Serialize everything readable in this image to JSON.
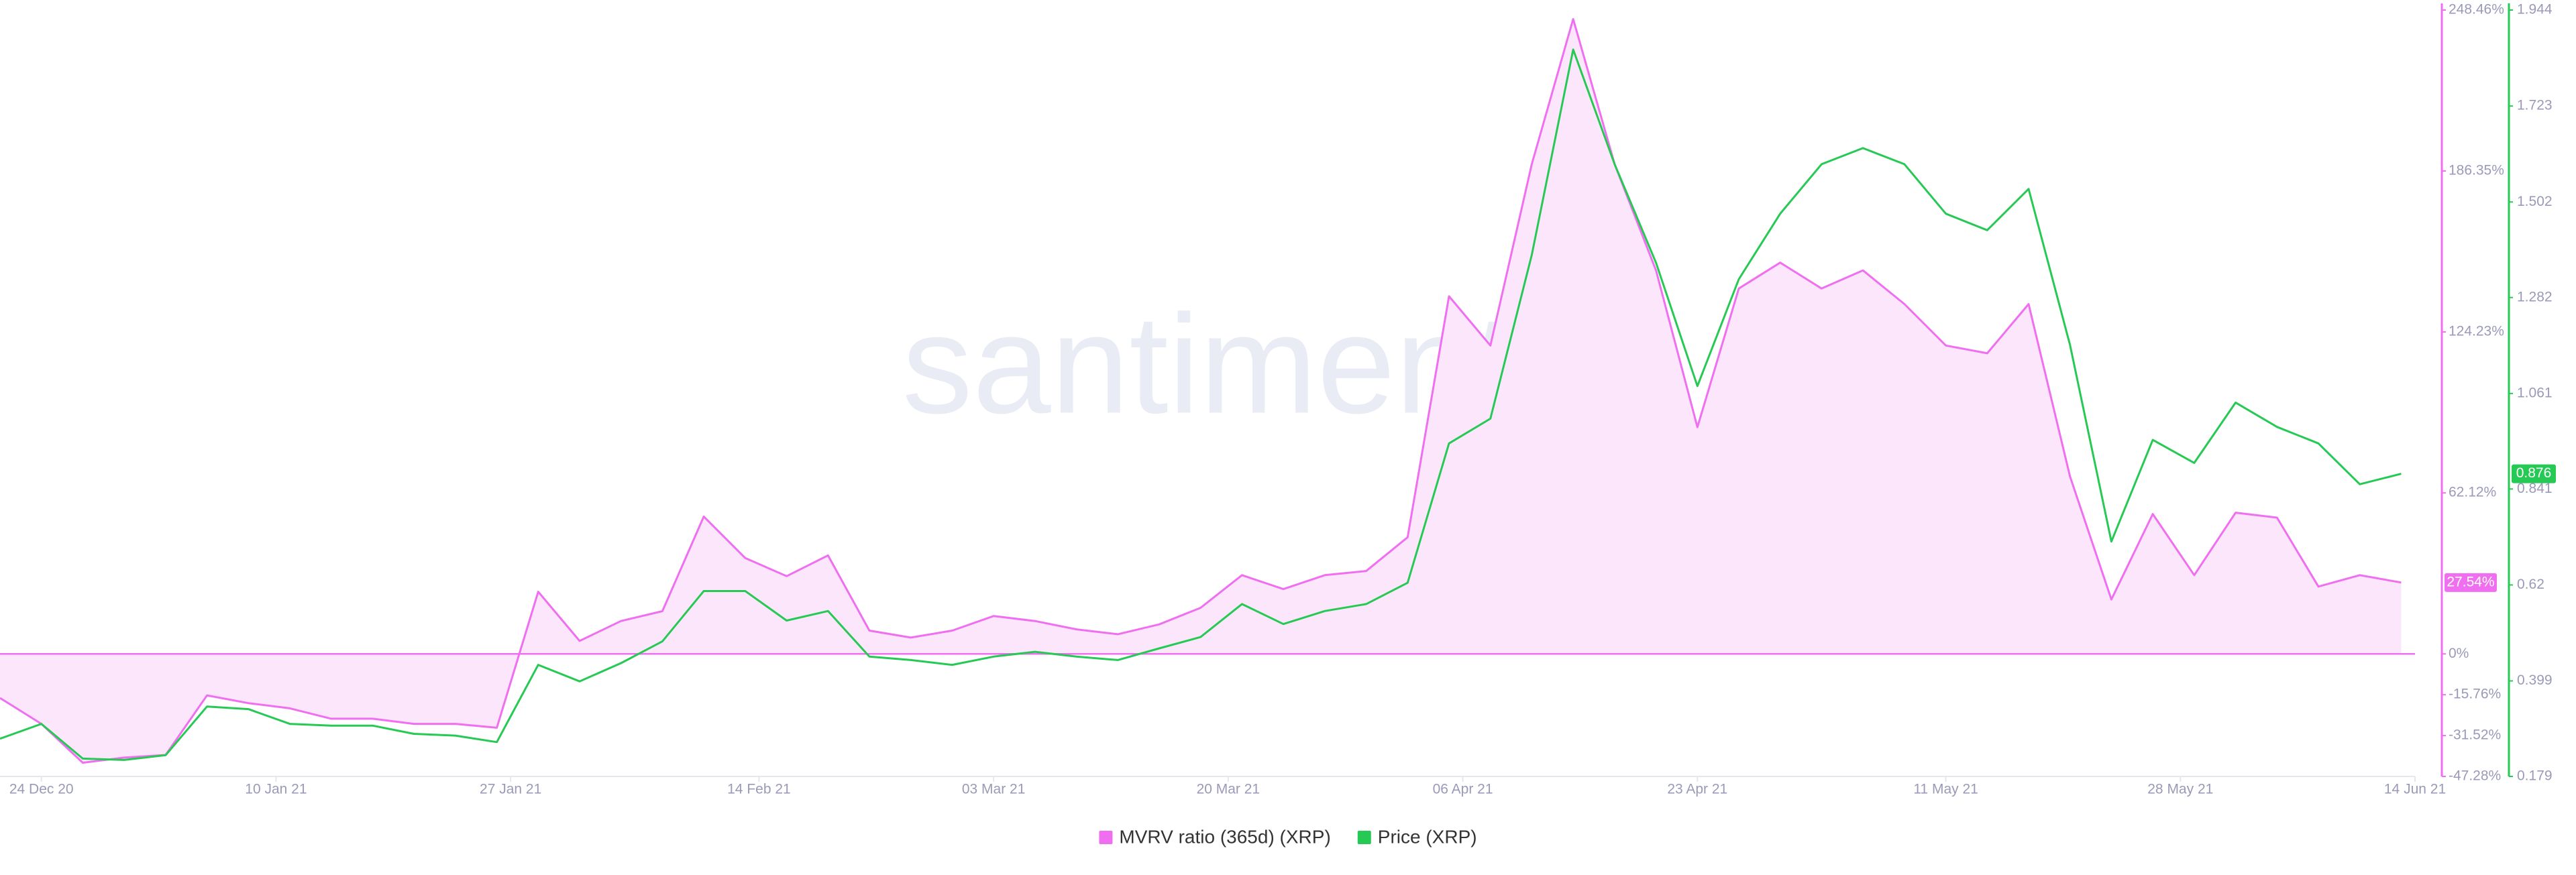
{
  "chart_data": {
    "type": "line",
    "watermark": "santiment",
    "x": [
      "2020-12-21",
      "2020-12-24",
      "2020-12-27",
      "2020-12-30",
      "2021-01-02",
      "2021-01-05",
      "2021-01-08",
      "2021-01-11",
      "2021-01-14",
      "2021-01-17",
      "2021-01-20",
      "2021-01-23",
      "2021-01-26",
      "2021-01-29",
      "2021-02-01",
      "2021-02-04",
      "2021-02-07",
      "2021-02-10",
      "2021-02-13",
      "2021-02-16",
      "2021-02-19",
      "2021-02-22",
      "2021-02-25",
      "2021-02-28",
      "2021-03-03",
      "2021-03-06",
      "2021-03-09",
      "2021-03-12",
      "2021-03-15",
      "2021-03-18",
      "2021-03-21",
      "2021-03-24",
      "2021-03-27",
      "2021-03-30",
      "2021-04-02",
      "2021-04-05",
      "2021-04-08",
      "2021-04-11",
      "2021-04-14",
      "2021-04-17",
      "2021-04-20",
      "2021-04-23",
      "2021-04-26",
      "2021-04-29",
      "2021-05-02",
      "2021-05-05",
      "2021-05-08",
      "2021-05-11",
      "2021-05-14",
      "2021-05-17",
      "2021-05-20",
      "2021-05-23",
      "2021-05-26",
      "2021-05-29",
      "2021-06-01",
      "2021-06-04",
      "2021-06-07",
      "2021-06-10",
      "2021-06-13"
    ],
    "xlim": [
      "2020-12-21",
      "2021-06-14"
    ],
    "xticks": [
      {
        "value": "2020-12-24",
        "label": "24 Dec 20"
      },
      {
        "value": "2021-01-10",
        "label": "10 Jan 21"
      },
      {
        "value": "2021-01-27",
        "label": "27 Jan 21"
      },
      {
        "value": "2021-02-14",
        "label": "14 Feb 21"
      },
      {
        "value": "2021-03-03",
        "label": "03 Mar 21"
      },
      {
        "value": "2021-03-20",
        "label": "20 Mar 21"
      },
      {
        "value": "2021-04-06",
        "label": "06 Apr 21"
      },
      {
        "value": "2021-04-23",
        "label": "23 Apr 21"
      },
      {
        "value": "2021-05-11",
        "label": "11 May 21"
      },
      {
        "value": "2021-05-28",
        "label": "28 May 21"
      },
      {
        "value": "2021-06-14",
        "label": "14 Jun 21"
      }
    ],
    "ylim": [
      -47.28,
      248.46
    ],
    "yticks": [
      {
        "value": -47.28,
        "label": "-47.28%"
      },
      {
        "value": -31.52,
        "label": "-31.52%"
      },
      {
        "value": -15.76,
        "label": "-15.76%"
      },
      {
        "value": 0,
        "label": "0%"
      },
      {
        "value": 62.12,
        "label": "62.12%"
      },
      {
        "value": 124.23,
        "label": "124.23%"
      },
      {
        "value": 186.35,
        "label": "186.35%"
      },
      {
        "value": 248.46,
        "label": "248.46%"
      }
    ],
    "y2lim": [
      0.179,
      1.944
    ],
    "y2ticks": [
      0.179,
      0.399,
      0.62,
      0.841,
      1.061,
      1.282,
      1.502,
      1.723,
      1.944
    ],
    "series": [
      {
        "name": "MVRV ratio (365d) (XRP)",
        "color": "#f06ff0",
        "fill": "#fbe6fb",
        "axis": "y",
        "last_label": "27.54%",
        "values": [
          -17,
          -27,
          -42,
          -40,
          -39,
          -16,
          -19,
          -21,
          -25,
          -25,
          -27,
          -27,
          -28.5,
          24,
          5,
          12.7,
          16.5,
          53,
          37,
          30,
          38,
          9,
          6.3,
          9,
          14.6,
          12.7,
          9.5,
          7.6,
          11.4,
          17.8,
          30.4,
          25,
          30.4,
          32,
          45,
          138,
          119,
          189,
          245,
          189,
          148,
          87.5,
          141,
          151,
          141,
          148,
          135,
          119,
          116,
          135,
          68.5,
          21,
          54,
          30.4,
          54.5,
          52.6,
          26,
          30.4,
          27.54
        ]
      },
      {
        "name": "Price (XRP)",
        "color": "#26c953",
        "axis": "y2",
        "last_label": "0.876",
        "values": [
          0.266,
          0.3,
          0.22,
          0.217,
          0.228,
          0.34,
          0.334,
          0.3,
          0.296,
          0.296,
          0.277,
          0.273,
          0.258,
          0.436,
          0.398,
          0.44,
          0.49,
          0.606,
          0.606,
          0.538,
          0.56,
          0.455,
          0.447,
          0.436,
          0.455,
          0.466,
          0.455,
          0.447,
          0.474,
          0.5,
          0.576,
          0.53,
          0.56,
          0.576,
          0.625,
          0.946,
          1.003,
          1.38,
          1.853,
          1.589,
          1.362,
          1.078,
          1.324,
          1.475,
          1.589,
          1.626,
          1.589,
          1.475,
          1.437,
          1.532,
          1.173,
          0.72,
          0.954,
          0.901,
          1.04,
          0.984,
          0.946,
          0.852,
          0.876
        ]
      }
    ]
  }
}
